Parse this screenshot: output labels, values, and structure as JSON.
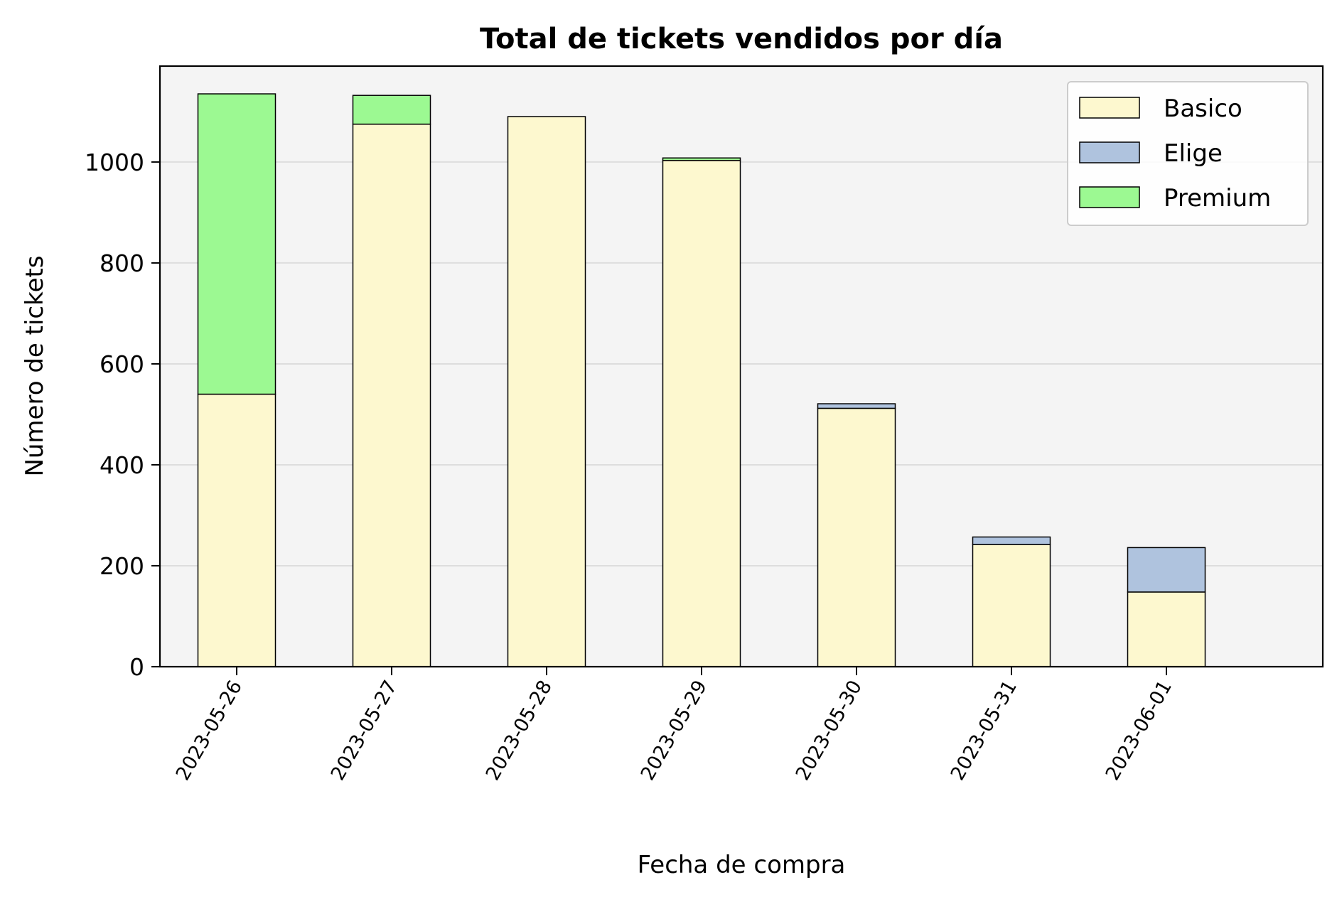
{
  "chart_data": {
    "type": "bar",
    "stacked": true,
    "title": "Total de tickets vendidos por día",
    "xlabel": "Fecha de compra",
    "ylabel": "Número de tickets",
    "categories": [
      "2023-05-26",
      "2023-05-27",
      "2023-05-28",
      "2023-05-29",
      "2023-05-30",
      "2023-05-31",
      "2023-06-01"
    ],
    "series": [
      {
        "name": "Basico",
        "color": "#fdf8cf",
        "values": [
          540,
          1075,
          1090,
          1003,
          512,
          242,
          148
        ]
      },
      {
        "name": "Elige",
        "color": "#afc3de",
        "values": [
          0,
          0,
          0,
          0,
          9,
          15,
          88
        ]
      },
      {
        "name": "Premium",
        "color": "#9cf992",
        "values": [
          595,
          57,
          0,
          5,
          0,
          0,
          0
        ]
      }
    ],
    "ylim": [
      0,
      1190
    ],
    "yticks": [
      0,
      200,
      400,
      600,
      800,
      1000
    ],
    "grid": {
      "y": true,
      "x": false
    },
    "legend_position": "top-right",
    "plot_background": "#f4f4f4"
  }
}
